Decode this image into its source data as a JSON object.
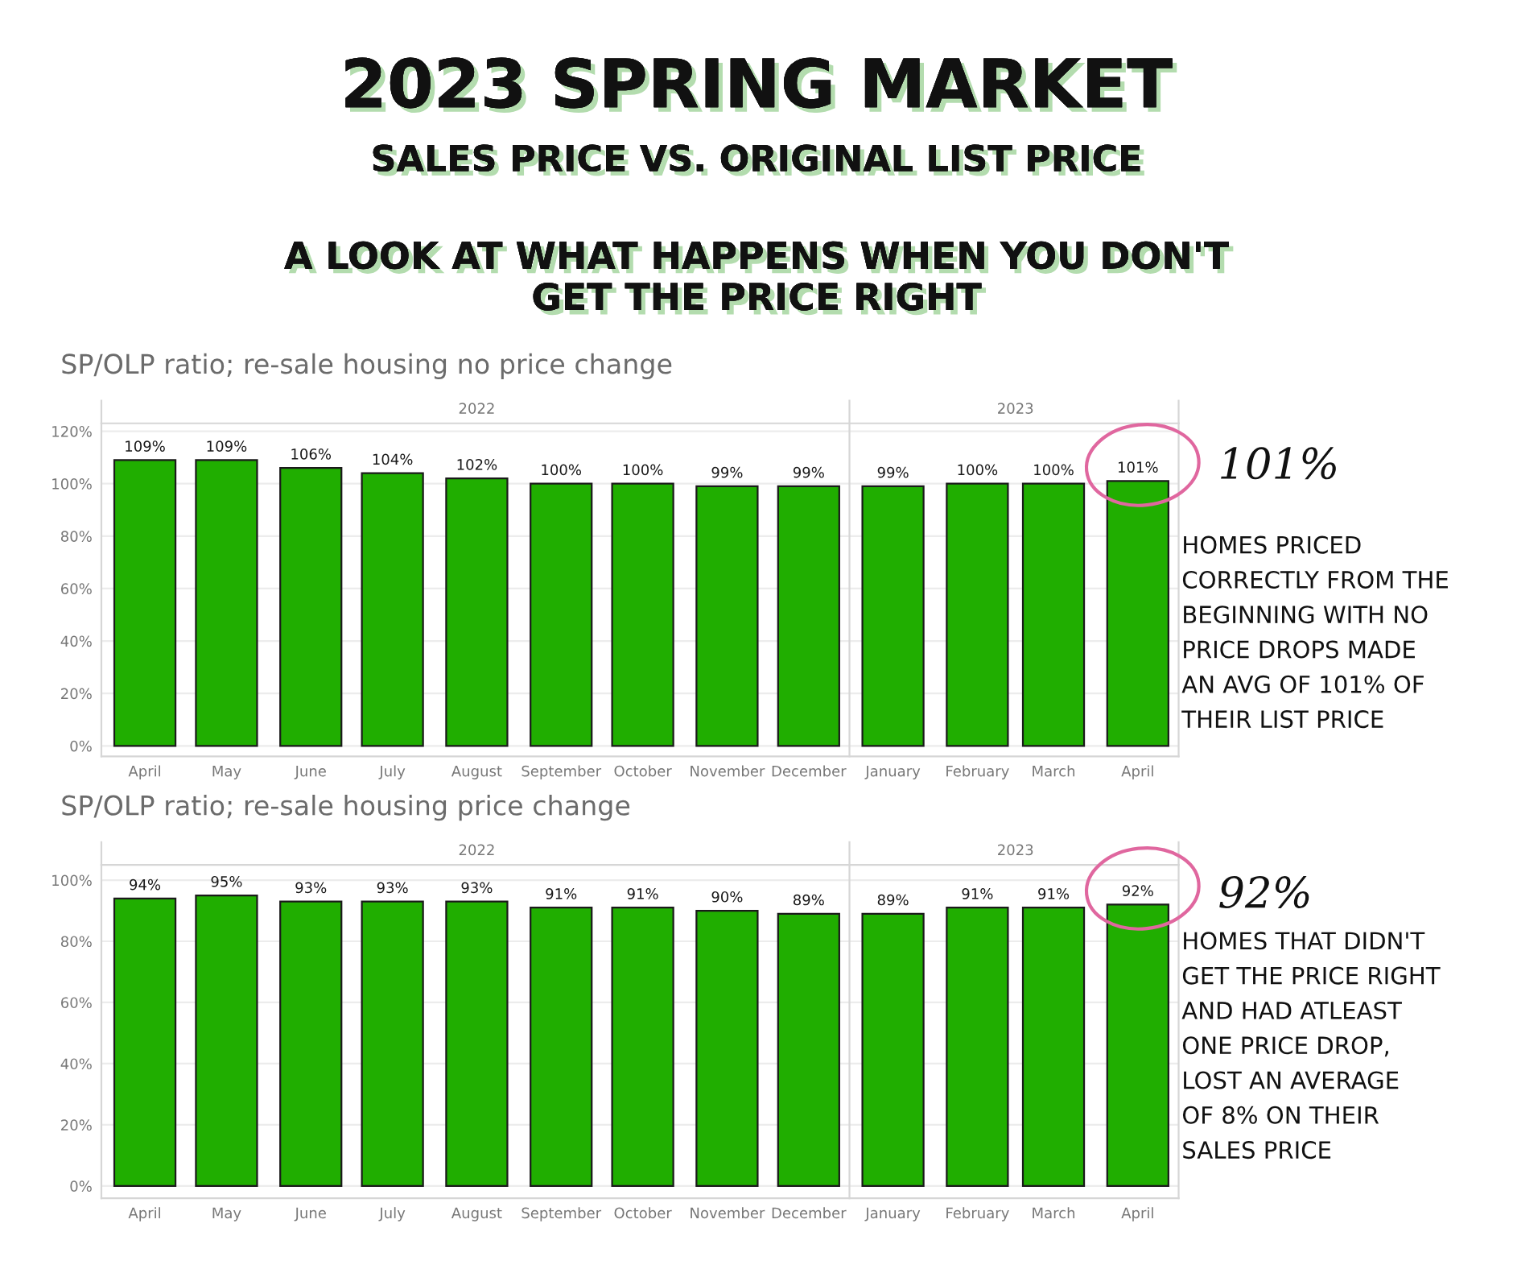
{
  "chart_data": [
    {
      "type": "bar",
      "title": "SP/OLP ratio; re-sale housing no price change",
      "x": [
        "2022-04",
        "2022-05",
        "2022-06",
        "2022-07",
        "2022-08",
        "2022-09",
        "2022-10",
        "2022-11",
        "2022-12",
        "2023-01",
        "2023-02",
        "2023-03",
        "2023-04"
      ],
      "xlim": [
        "2022-03-16",
        "2023-04-16"
      ],
      "xticks": [
        {
          "value": "2022-04",
          "label": "April"
        },
        {
          "value": "2022-05",
          "label": "May"
        },
        {
          "value": "2022-06",
          "label": "June"
        },
        {
          "value": "2022-07",
          "label": "July"
        },
        {
          "value": "2022-08",
          "label": "August"
        },
        {
          "value": "2022-09",
          "label": "September"
        },
        {
          "value": "2022-10",
          "label": "October"
        },
        {
          "value": "2022-11",
          "label": "November"
        },
        {
          "value": "2022-12",
          "label": "December"
        },
        {
          "value": "2023-01",
          "label": "January"
        },
        {
          "value": "2023-02",
          "label": "February"
        },
        {
          "value": "2023-03",
          "label": "March"
        },
        {
          "value": "2023-04",
          "label": "April"
        }
      ],
      "x2lim": [
        "2022-03-16",
        "2023-04-16"
      ],
      "x2ticks": [
        {
          "value": "2022-08",
          "label": "2022"
        },
        {
          "value": "2023-02-15",
          "label": "2023"
        }
      ],
      "values": [
        109,
        109,
        106,
        104,
        102,
        100,
        100,
        99,
        99,
        99,
        100,
        100,
        101
      ],
      "value_labels": [
        "109%",
        "109%",
        "106%",
        "104%",
        "102%",
        "100%",
        "100%",
        "99%",
        "99%",
        "99%",
        "100%",
        "100%",
        "101%"
      ],
      "color": "#20ae00",
      "ylim": [
        -4,
        123
      ],
      "yticks": [
        {
          "value": 0,
          "label": "0%"
        },
        {
          "value": 20,
          "label": "20%"
        },
        {
          "value": 40,
          "label": "40%"
        },
        {
          "value": 60,
          "label": "60%"
        },
        {
          "value": 80,
          "label": "80%"
        },
        {
          "value": 100,
          "label": "100%"
        },
        {
          "value": 120,
          "label": "120%"
        }
      ],
      "grid": "y",
      "ref_lines": [
        {
          "axis": "x",
          "value": "2022-12-16",
          "color": "#d6d6d6"
        }
      ],
      "annotations": [
        "2023 SPRING MARKET",
        "SALES PRICE VS. ORIGINAL LIST PRICE",
        "A LOOK AT WHAT HAPPENS WHEN YOU DON'T\nGET THE PRICE RIGHT",
        "101%",
        "HOMES PRICED\nCORRECTLY FROM THE\nBEGINNING WITH NO\nPRICE DROPS MADE\nAN AVG OF 101% OF\nTHEIR LIST PRICE"
      ]
    },
    {
      "type": "bar",
      "title": "SP/OLP ratio; re-sale housing price change",
      "x": [
        "2022-04",
        "2022-05",
        "2022-06",
        "2022-07",
        "2022-08",
        "2022-09",
        "2022-10",
        "2022-11",
        "2022-12",
        "2023-01",
        "2023-02",
        "2023-03",
        "2023-04"
      ],
      "xlim": [
        "2022-03-16",
        "2023-04-16"
      ],
      "xticks": [
        {
          "value": "2022-04",
          "label": "April"
        },
        {
          "value": "2022-05",
          "label": "May"
        },
        {
          "value": "2022-06",
          "label": "June"
        },
        {
          "value": "2022-07",
          "label": "July"
        },
        {
          "value": "2022-08",
          "label": "August"
        },
        {
          "value": "2022-09",
          "label": "September"
        },
        {
          "value": "2022-10",
          "label": "October"
        },
        {
          "value": "2022-11",
          "label": "November"
        },
        {
          "value": "2022-12",
          "label": "December"
        },
        {
          "value": "2023-01",
          "label": "January"
        },
        {
          "value": "2023-02",
          "label": "February"
        },
        {
          "value": "2023-03",
          "label": "March"
        },
        {
          "value": "2023-04",
          "label": "April"
        }
      ],
      "x2lim": [
        "2022-03-16",
        "2023-04-16"
      ],
      "x2ticks": [
        {
          "value": "2022-08",
          "label": "2022"
        },
        {
          "value": "2023-02-15",
          "label": "2023"
        }
      ],
      "values": [
        94,
        95,
        93,
        93,
        93,
        91,
        91,
        90,
        89,
        89,
        91,
        91,
        92
      ],
      "value_labels": [
        "94%",
        "95%",
        "93%",
        "93%",
        "93%",
        "91%",
        "91%",
        "90%",
        "89%",
        "89%",
        "91%",
        "91%",
        "92%"
      ],
      "color": "#20ae00",
      "ylim": [
        -4,
        105
      ],
      "yticks": [
        {
          "value": 0,
          "label": "0%"
        },
        {
          "value": 20,
          "label": "20%"
        },
        {
          "value": 40,
          "label": "40%"
        },
        {
          "value": 60,
          "label": "60%"
        },
        {
          "value": 80,
          "label": "80%"
        },
        {
          "value": 100,
          "label": "100%"
        }
      ],
      "grid": "y",
      "ref_lines": [
        {
          "axis": "x",
          "value": "2022-12-16",
          "color": "#d6d6d6"
        }
      ],
      "annotations": [
        "92%",
        "HOMES THAT DIDN'T\nGET THE PRICE RIGHT\nAND HAD ATLEAST\nONE PRICE DROP,\nLOST AN AVERAGE\nOF 8% ON THEIR\nSALES PRICE"
      ]
    }
  ]
}
